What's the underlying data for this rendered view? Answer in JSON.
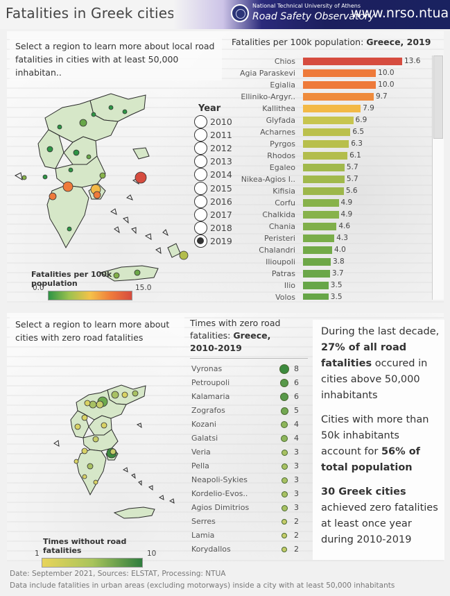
{
  "header": {
    "title": "Fatalities in Greek cities",
    "university": "National Technical University of Athens",
    "observatory": "Road Safety Observatory",
    "url": "www.nrso.ntua.gr"
  },
  "top_panel": {
    "instruction": "Select a region to learn more about local road fatalities in cities with at least 50,000 inhabitan..",
    "chart_title_prefix": "Fatalities per 100k population: ",
    "chart_title_bold": "Greece, 2019",
    "year_selector": {
      "label": "Year",
      "years": [
        "2010",
        "2011",
        "2012",
        "2013",
        "2014",
        "2015",
        "2016",
        "2017",
        "2018",
        "2019"
      ],
      "selected": "2019"
    },
    "map_legend": {
      "title": "Fatalities per 100k population",
      "min": "0.0",
      "max": "15.0"
    }
  },
  "chart_data": [
    {
      "type": "bar",
      "orientation": "horizontal",
      "title": "Fatalities per 100k population: Greece, 2019",
      "xlim": [
        0,
        15
      ],
      "categories": [
        "Chios",
        "Agia Paraskevi",
        "Egialia",
        "Elliniko-Argyr..",
        "Kallithea",
        "Glyfada",
        "Acharnes",
        "Pyrgos",
        "Rhodos",
        "Egaleo",
        "Nikea-Agios I..",
        "Kifisia",
        "Corfu",
        "Chalkida",
        "Chania",
        "Peristeri",
        "Chalandri",
        "Ilioupoli",
        "Patras",
        "Ilio",
        "Volos"
      ],
      "values": [
        13.6,
        10.0,
        10.0,
        9.7,
        7.9,
        6.9,
        6.5,
        6.3,
        6.1,
        5.7,
        5.7,
        5.6,
        4.9,
        4.9,
        4.6,
        4.3,
        4.0,
        3.8,
        3.7,
        3.5,
        3.5
      ],
      "value_labels": [
        "13.6",
        "10.0",
        "10.0",
        "9.7",
        "7.9",
        "6.9",
        "6.5",
        "6.3",
        "6.1",
        "5.7",
        "5.7",
        "5.6",
        "4.9",
        "4.9",
        "4.6",
        "4.3",
        "4.0",
        "3.8",
        "3.7",
        "3.5",
        "3.5"
      ],
      "colors": [
        "#d64c3f",
        "#ee7a3a",
        "#ee7a3a",
        "#ef8b3c",
        "#f3b946",
        "#c7c54f",
        "#bbc04d",
        "#b8bf4c",
        "#b3bd4c",
        "#a1b94c",
        "#a1b94c",
        "#9db74b",
        "#87b24a",
        "#87b24a",
        "#80af49",
        "#79ad49",
        "#72aa48",
        "#6ea848",
        "#6ba748",
        "#67a648",
        "#67a648"
      ]
    },
    {
      "type": "dot",
      "title": "Times with zero road fatalities: Greece, 2010-2019",
      "categories": [
        "Vyronas",
        "Petroupoli",
        "Kalamaria",
        "Zografos",
        "Kozani",
        "Galatsi",
        "Veria",
        "Pella",
        "Neapoli-Sykies",
        "Kordelio-Evos..",
        "Agios Dimitrios",
        "Serres",
        "Lamia",
        "Korydallos"
      ],
      "values": [
        8,
        6,
        6,
        5,
        4,
        4,
        3,
        3,
        3,
        3,
        3,
        2,
        2,
        2
      ],
      "value_labels": [
        "8",
        "6",
        "6",
        "5",
        "4",
        "4",
        "3",
        "3",
        "3",
        "3",
        "3",
        "2",
        "2",
        "2"
      ],
      "colors": [
        "#3c8a3e",
        "#58994a",
        "#58994a",
        "#73a852",
        "#8db55a",
        "#8db55a",
        "#a8c163",
        "#a8c163",
        "#a8c163",
        "#a8c163",
        "#a8c163",
        "#c5cc69",
        "#c5cc69",
        "#c5cc69"
      ]
    }
  ],
  "bottom_panel": {
    "instruction": "Select a region to learn more about cities with  zero road fatalities",
    "chart_title_line1": "Times with zero road",
    "chart_title_line2_prefix": "fatalities: ",
    "chart_title_bold": "Greece,",
    "chart_title_line3": "2010-2019",
    "map_legend": {
      "title": "Times without road fatalities",
      "min": "1",
      "max": "10"
    }
  },
  "summary": {
    "p1_pre": "During the last decade, ",
    "p1_bold": "27% of all road fatalities",
    "p1_post": " occured in cities above 50,000 inhabitants",
    "p2_pre": "Cities with more than 50k inhabitants account for ",
    "p2_bold": "56% of total population",
    "p3_bold": "30 Greek cities",
    "p3_post": " achieved zero fatalities at least once year during 2010-2019"
  },
  "footer": {
    "line1": "Date: September 2021, Sources: ELSTAT, Processing: NTUA",
    "line2": "Data include fatalities in urban areas (excluding motorways) inside a city with at least 50,000 inhabitants"
  },
  "colors": {
    "ramp_fatalities": [
      "#2e9445",
      "#9dc24f",
      "#f4c24a",
      "#ef7b3b",
      "#d64c3f"
    ],
    "ramp_zero": [
      "#e8d45a",
      "#a9c45c",
      "#2f7d3e"
    ]
  }
}
